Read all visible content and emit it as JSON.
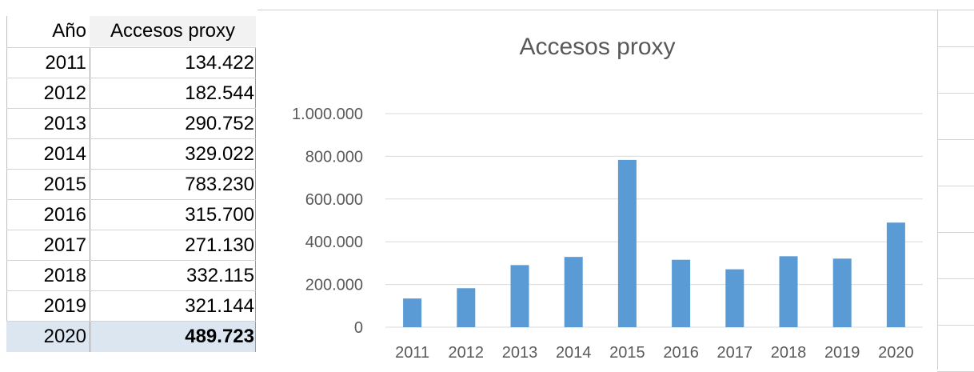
{
  "table": {
    "headers": [
      "Año",
      "Accesos proxy"
    ],
    "rows": [
      {
        "year": "2011",
        "value": "134.422"
      },
      {
        "year": "2012",
        "value": "182.544"
      },
      {
        "year": "2013",
        "value": "290.752"
      },
      {
        "year": "2014",
        "value": "329.022"
      },
      {
        "year": "2015",
        "value": "783.230"
      },
      {
        "year": "2016",
        "value": "315.700"
      },
      {
        "year": "2017",
        "value": "271.130"
      },
      {
        "year": "2018",
        "value": "332.115"
      },
      {
        "year": "2019",
        "value": "321.144"
      },
      {
        "year": "2020",
        "value": "489.723"
      }
    ],
    "selected_row": "2020"
  },
  "chart_data": {
    "type": "bar",
    "title": "Accesos proxy",
    "categories": [
      "2011",
      "2012",
      "2013",
      "2014",
      "2015",
      "2016",
      "2017",
      "2018",
      "2019",
      "2020"
    ],
    "series": [
      {
        "values": [
          134422,
          182544,
          290752,
          329022,
          783230,
          315700,
          271130,
          332115,
          321144,
          489723
        ]
      }
    ],
    "ylim": [
      0,
      1000000
    ],
    "yticks": [
      0,
      200000,
      400000,
      600000,
      800000,
      1000000
    ],
    "ytick_labels": [
      "0",
      "200.000",
      "400.000",
      "600.000",
      "800.000",
      "1.000.000"
    ],
    "grid": true,
    "bar_color": "#5b9bd5",
    "grid_color": "#d9d9d9"
  }
}
